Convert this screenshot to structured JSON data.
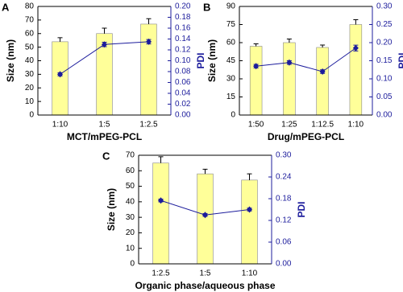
{
  "chart_data": [
    {
      "type": "bar",
      "panel": "A",
      "xlabel": "MCT/mPEG-PCL",
      "ylabel": "Size (nm)",
      "y2label": "PDI",
      "categories": [
        "1:10",
        "1:5",
        "1:2.5"
      ],
      "ylim": [
        0,
        80
      ],
      "yticks": [
        0,
        10,
        20,
        30,
        40,
        50,
        60,
        70,
        80
      ],
      "y2lim": [
        0,
        0.2
      ],
      "y2ticks": [
        {
          "value": 0,
          "label": "0.00"
        },
        {
          "value": 0.02,
          "label": "0.02"
        },
        {
          "value": 0.04,
          "label": "0.04"
        },
        {
          "value": 0.06,
          "label": "0.06"
        },
        {
          "value": 0.08,
          "label": "0.08"
        },
        {
          "value": 0.1,
          "label": "0.10"
        },
        {
          "value": 0.12,
          "label": "0.12"
        },
        {
          "value": 0.14,
          "label": "0.14"
        },
        {
          "value": 0.16,
          "label": "0.16"
        },
        {
          "value": 0.18,
          "label": "0.18"
        },
        {
          "value": 0.2,
          "label": "0.20"
        }
      ],
      "series": [
        {
          "type": "bar",
          "color": "#ffff99",
          "values": [
            54,
            60,
            67
          ],
          "errors": [
            3,
            4,
            4
          ]
        },
        {
          "type": "line",
          "axis": "y2",
          "color": "#1c1c9c",
          "values": [
            0.075,
            0.13,
            0.135
          ],
          "errors": [
            0.003,
            0.004,
            0.004
          ]
        }
      ]
    },
    {
      "type": "bar",
      "panel": "B",
      "xlabel": "Drug/mPEG-PCL",
      "ylabel": "Size (nm)",
      "y2label": "PDI",
      "categories": [
        "1:50",
        "1:25",
        "1:12.5",
        "1:10"
      ],
      "ylim": [
        0,
        90
      ],
      "yticks": [
        0,
        15,
        30,
        45,
        60,
        75,
        90
      ],
      "y2lim": [
        0,
        0.3
      ],
      "y2ticks": [
        {
          "value": 0,
          "label": "0.00"
        },
        {
          "value": 0.05,
          "label": "0.05"
        },
        {
          "value": 0.1,
          "label": "0.10"
        },
        {
          "value": 0.15,
          "label": "0.15"
        },
        {
          "value": 0.2,
          "label": "0.20"
        },
        {
          "value": 0.25,
          "label": "0.25"
        },
        {
          "value": 0.3,
          "label": "0.30"
        }
      ],
      "series": [
        {
          "type": "bar",
          "color": "#ffff99",
          "values": [
            57,
            60,
            56,
            75
          ],
          "errors": [
            2,
            3,
            2,
            4
          ]
        },
        {
          "type": "line",
          "axis": "y2",
          "color": "#1c1c9c",
          "values": [
            0.135,
            0.145,
            0.12,
            0.185
          ],
          "errors": [
            0.005,
            0.005,
            0.005,
            0.008
          ]
        }
      ]
    },
    {
      "type": "bar",
      "panel": "C",
      "xlabel": "Organic phase/aqueous phase",
      "ylabel": "Size (nm)",
      "y2label": "PDI",
      "categories": [
        "1:2.5",
        "1:5",
        "1:10"
      ],
      "ylim": [
        0,
        70
      ],
      "yticks": [
        0,
        10,
        20,
        30,
        40,
        50,
        60,
        70
      ],
      "y2lim": [
        0,
        0.3
      ],
      "y2ticks": [
        {
          "value": 0,
          "label": "0.00"
        },
        {
          "value": 0.06,
          "label": "0.06"
        },
        {
          "value": 0.12,
          "label": "0.12"
        },
        {
          "value": 0.18,
          "label": "0.18"
        },
        {
          "value": 0.24,
          "label": "0.24"
        },
        {
          "value": 0.3,
          "label": "0.30"
        }
      ],
      "series": [
        {
          "type": "bar",
          "color": "#ffff99",
          "values": [
            65,
            58,
            54
          ],
          "errors": [
            4,
            3,
            4
          ]
        },
        {
          "type": "line",
          "axis": "y2",
          "color": "#1c1c9c",
          "values": [
            0.175,
            0.135,
            0.15
          ],
          "errors": [
            0.004,
            0.004,
            0.004
          ]
        }
      ]
    }
  ]
}
